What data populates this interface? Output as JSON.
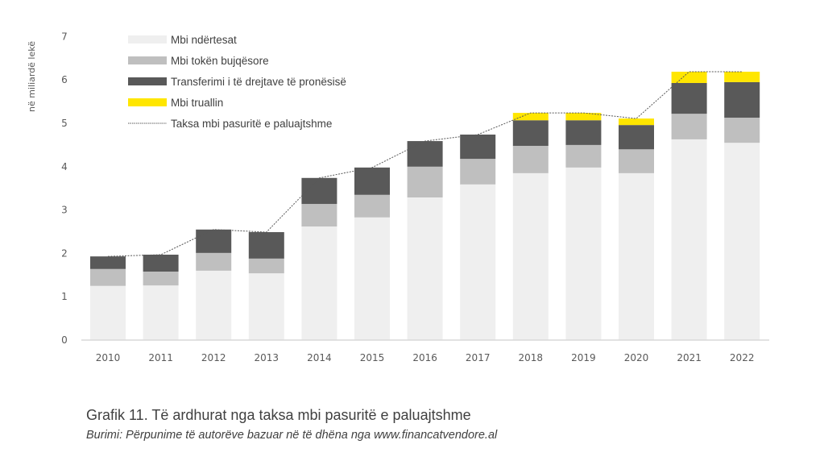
{
  "chart_data": {
    "type": "bar",
    "stacked": true,
    "title": "",
    "xlabel": "",
    "ylabel": "në miliardë lekë",
    "ylim": [
      0,
      7
    ],
    "yticks": [
      "0",
      "1",
      "2",
      "3",
      "4",
      "5",
      "6",
      "7"
    ],
    "grid": false,
    "legend_position": "top-left",
    "categories": [
      "2010",
      "2011",
      "2012",
      "2013",
      "2014",
      "2015",
      "2016",
      "2017",
      "2018",
      "2019",
      "2020",
      "2021",
      "2022"
    ],
    "series": [
      {
        "name": "Mbi ndërtesat",
        "color": "#efefef",
        "values": [
          1.25,
          1.26,
          1.6,
          1.54,
          2.62,
          2.83,
          3.29,
          3.59,
          3.85,
          3.98,
          3.85,
          4.63,
          4.55
        ]
      },
      {
        "name": "Mbi tokën bujqësore",
        "color": "#bfbfbf",
        "values": [
          0.39,
          0.32,
          0.41,
          0.34,
          0.52,
          0.52,
          0.71,
          0.59,
          0.63,
          0.52,
          0.55,
          0.59,
          0.58
        ]
      },
      {
        "name": "Transferimi i të drejtave të pronësisë",
        "color": "#595959",
        "values": [
          0.29,
          0.39,
          0.54,
          0.61,
          0.6,
          0.63,
          0.59,
          0.56,
          0.59,
          0.57,
          0.56,
          0.71,
          0.82
        ]
      },
      {
        "name": "Mbi truallin",
        "color": "#ffe600",
        "values": [
          0,
          0,
          0,
          0,
          0,
          0,
          0,
          0,
          0.17,
          0.17,
          0.15,
          0.26,
          0.24
        ]
      }
    ],
    "line_series": {
      "name": "Taksa mbi pasuritë e paluajtshme",
      "type": "line",
      "style": "dotted",
      "color": "#595959",
      "values": [
        1.93,
        1.97,
        2.55,
        2.49,
        3.74,
        3.98,
        4.59,
        4.74,
        5.24,
        5.24,
        5.11,
        6.19,
        6.19
      ]
    }
  },
  "caption": {
    "title": "Grafik 11. Të ardhurat nga taksa mbi pasuritë e paluajtshme",
    "source": "Burimi: Përpunime të autorëve bazuar në të dhëna nga  www.financatvendore.al"
  }
}
